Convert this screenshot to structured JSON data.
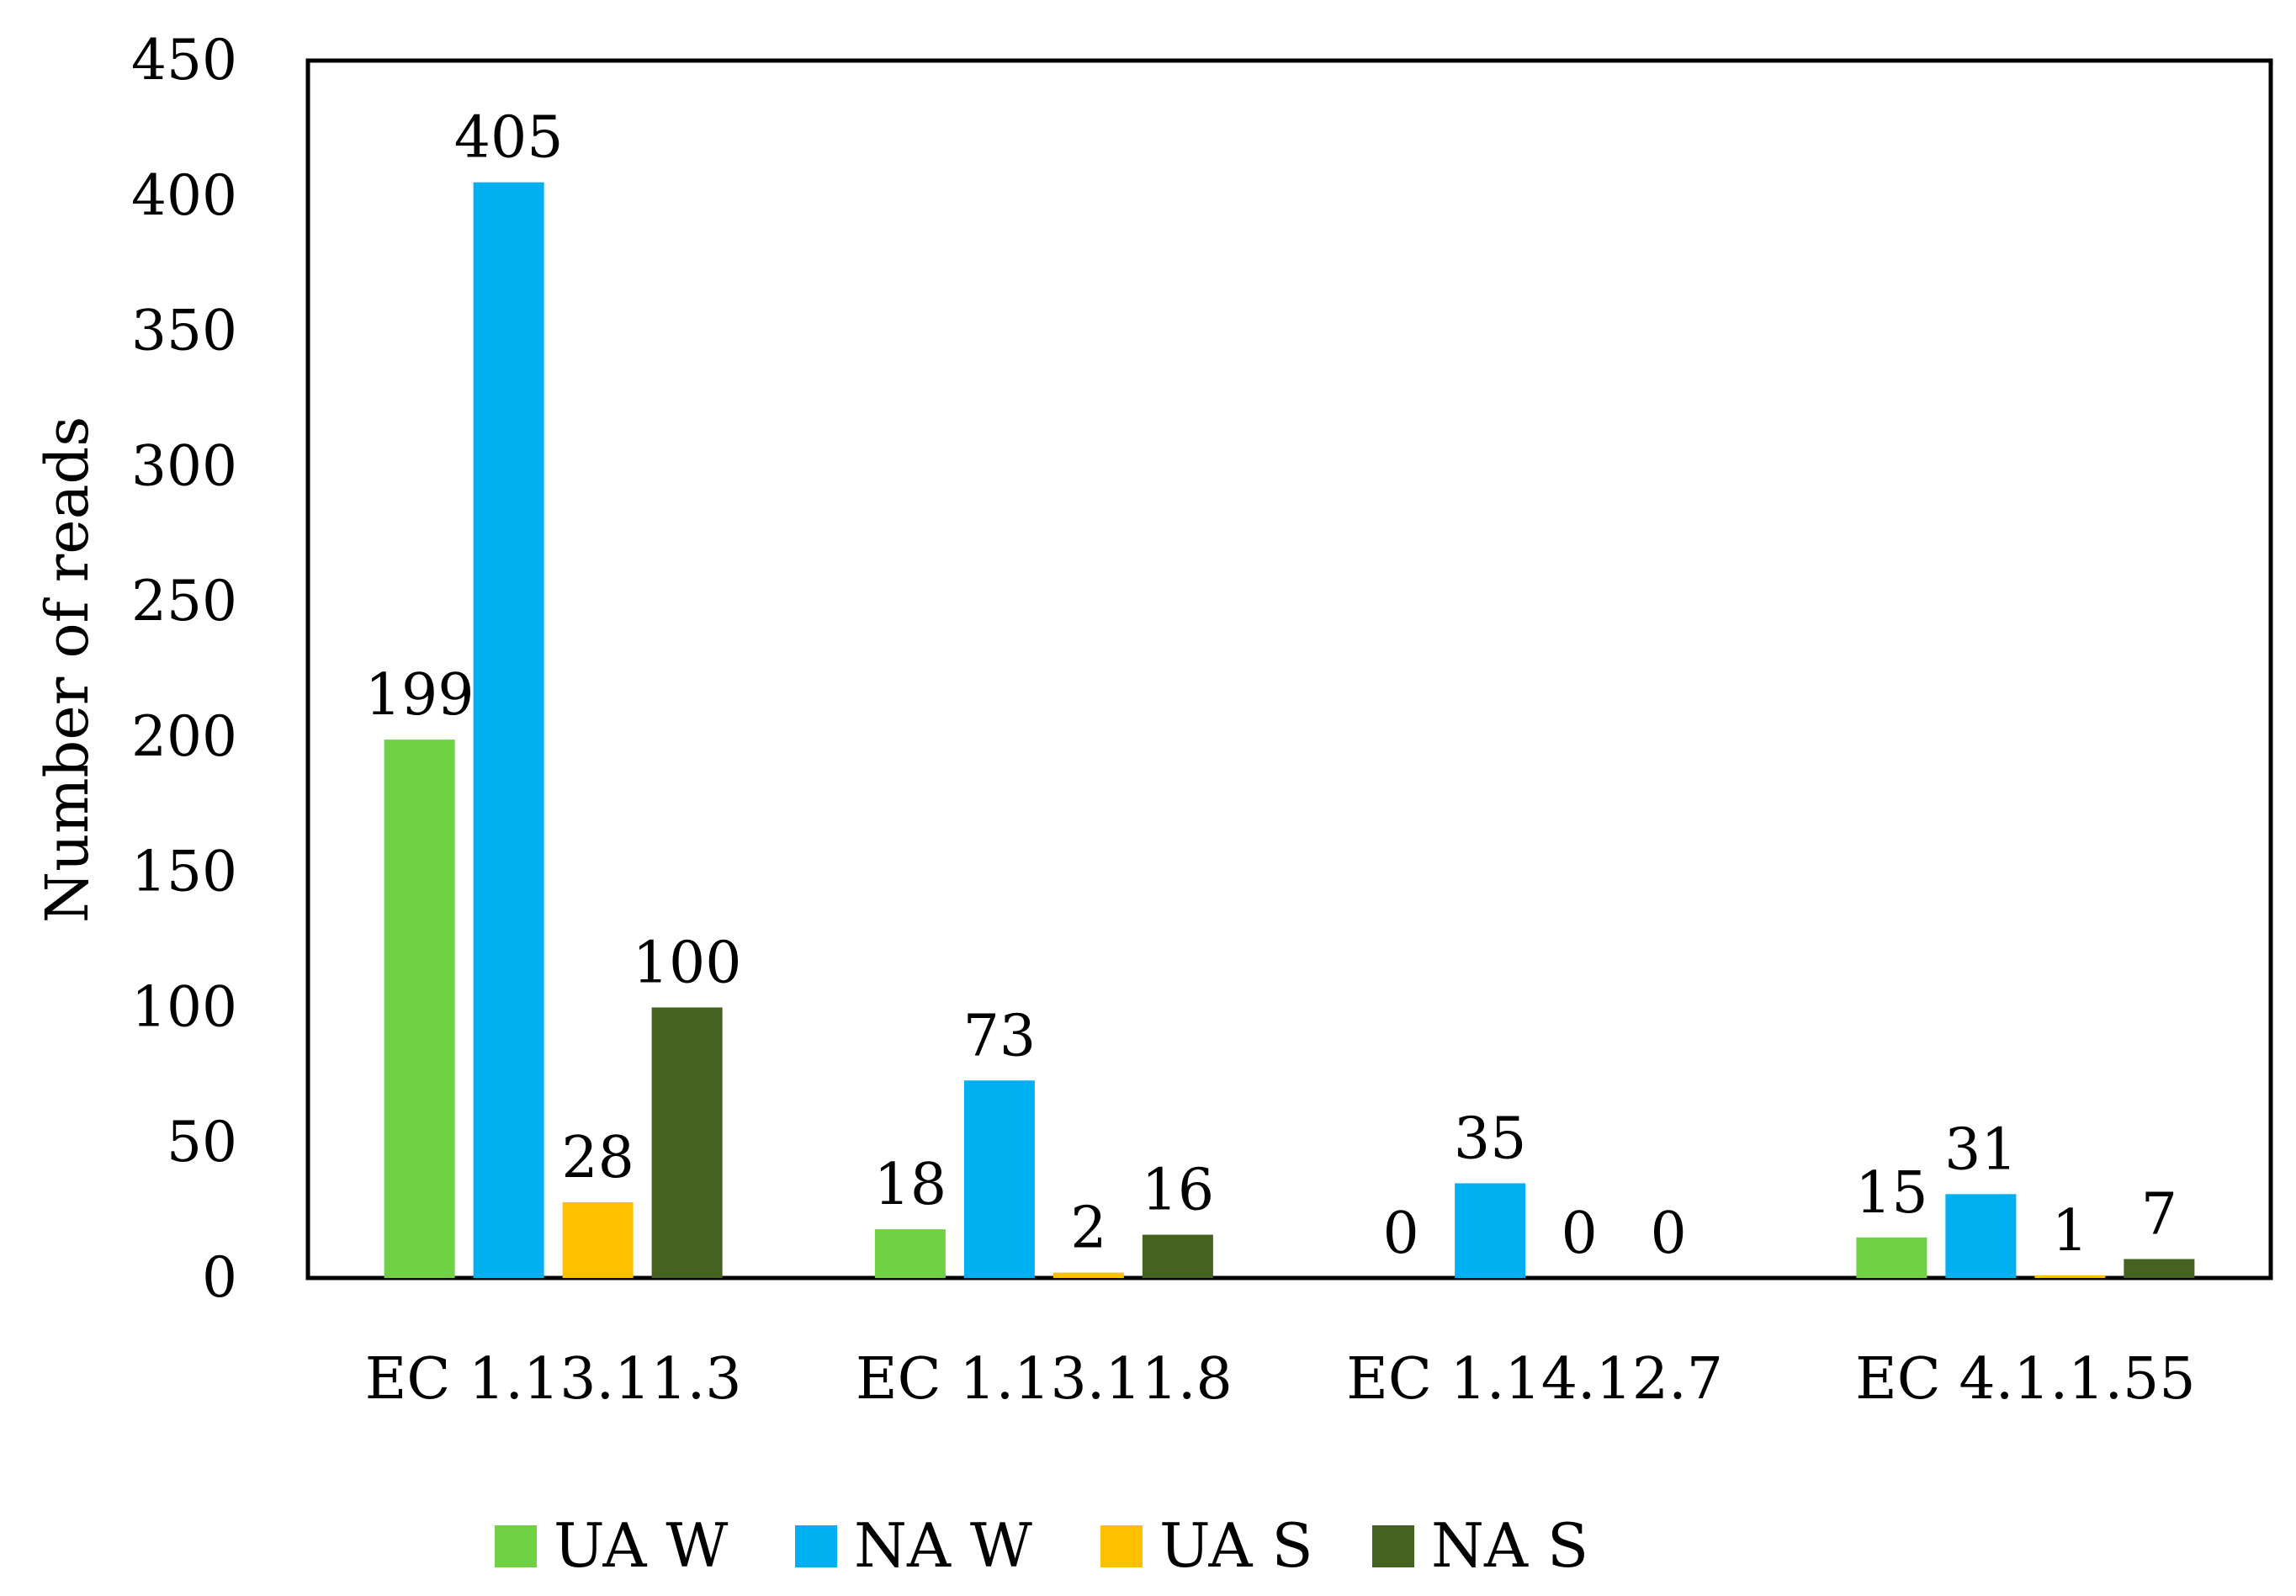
{
  "chart_data": {
    "type": "bar",
    "title": "",
    "xlabel": "",
    "ylabel": "Number of reads",
    "ylim": [
      0,
      450
    ],
    "yticks": [
      0,
      50,
      100,
      150,
      200,
      250,
      300,
      350,
      400,
      450
    ],
    "categories": [
      "EC 1.13.11.3",
      "EC 1.13.11.8",
      "EC 1.14.12.7",
      "EC 4.1.1.55"
    ],
    "series": [
      {
        "name": "UA W",
        "color": "#6fd143",
        "values": [
          199,
          18,
          0,
          15
        ],
        "labels": [
          "199",
          "18",
          "0",
          "15"
        ]
      },
      {
        "name": "NA W",
        "color": "#00b0f0",
        "values": [
          405,
          73,
          35,
          31
        ],
        "labels": [
          "405",
          "73",
          "35",
          "31"
        ]
      },
      {
        "name": "UA S",
        "color": "#ffc000",
        "values": [
          28,
          2,
          0,
          1
        ],
        "labels": [
          "28",
          "2",
          "0",
          "1"
        ]
      },
      {
        "name": "NA S",
        "color": "#466220",
        "values": [
          100,
          16,
          0,
          7
        ],
        "labels": [
          "100",
          "16",
          "0",
          "7"
        ]
      }
    ],
    "legend_position": "bottom",
    "grid": false
  }
}
